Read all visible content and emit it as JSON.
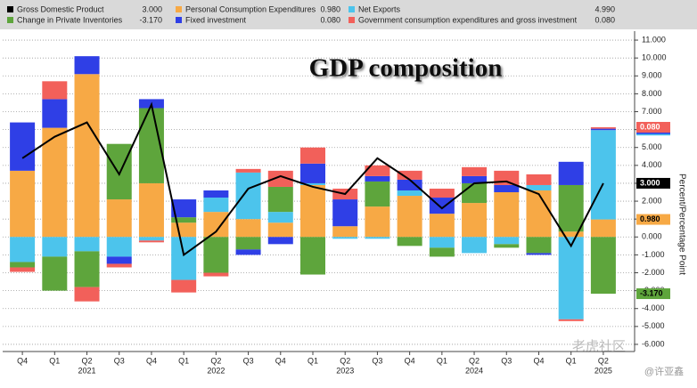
{
  "chart_data": {
    "type": "bar",
    "stacked": true,
    "title": "GDP composition",
    "y_label": "Percent/Percentage Point",
    "categories": [
      "Q4",
      "Q1",
      "Q2",
      "Q3",
      "Q4",
      "Q1",
      "Q2",
      "Q3",
      "Q4",
      "Q1",
      "Q2",
      "Q3",
      "Q4",
      "Q1",
      "Q2",
      "Q3",
      "Q4",
      "Q1",
      "Q2"
    ],
    "x_years": [
      null,
      null,
      "2021",
      null,
      null,
      null,
      "2022",
      null,
      null,
      null,
      "2023",
      null,
      null,
      null,
      "2024",
      null,
      null,
      null,
      "2025"
    ],
    "ylim": [
      -6.4,
      11.5
    ],
    "yticks": [
      {
        "value": 11,
        "label": "11.000"
      },
      {
        "value": 10,
        "label": "10.000"
      },
      {
        "value": 9,
        "label": "9.000"
      },
      {
        "value": 8,
        "label": "8.000"
      },
      {
        "value": 7,
        "label": "7.000"
      },
      {
        "value": 6,
        "label": "6.000"
      },
      {
        "value": 5,
        "label": "5.000"
      },
      {
        "value": 4,
        "label": "4.000"
      },
      {
        "value": 3,
        "label": "3.000"
      },
      {
        "value": 2,
        "label": "2.000"
      },
      {
        "value": 1,
        "label": "1.000"
      },
      {
        "value": 0,
        "label": "0.000"
      },
      {
        "value": -1,
        "label": "-1.000"
      },
      {
        "value": -2,
        "label": "-2.000"
      },
      {
        "value": -3,
        "label": "-3.000"
      },
      {
        "value": -4,
        "label": "-4.000"
      },
      {
        "value": -5,
        "label": "-5.000"
      },
      {
        "value": -6,
        "label": "-6.000"
      }
    ],
    "grid": true,
    "series": [
      {
        "name": "Gross Domestic Product",
        "type": "line",
        "color": "#000000",
        "values": [
          4.4,
          5.6,
          6.4,
          3.5,
          7.4,
          -1.0,
          0.3,
          2.7,
          3.4,
          2.8,
          2.4,
          4.4,
          3.2,
          1.6,
          3.0,
          3.1,
          2.4,
          -0.5,
          3.0
        ],
        "value_labels": [
          null,
          null,
          null,
          null,
          null,
          null,
          null,
          null,
          null,
          null,
          null,
          null,
          null,
          null,
          null,
          null,
          null,
          null,
          "3.000"
        ]
      },
      {
        "name": "Personal Consumption Expenditures",
        "type": "bar",
        "color": "#f7a945",
        "values": [
          3.7,
          6.1,
          9.1,
          2.1,
          3.0,
          0.8,
          1.4,
          1.0,
          0.8,
          2.9,
          0.6,
          1.7,
          2.3,
          1.3,
          1.9,
          2.5,
          2.6,
          0.3,
          0.98
        ],
        "value_labels": [
          null,
          null,
          null,
          null,
          null,
          null,
          null,
          null,
          null,
          null,
          null,
          null,
          null,
          null,
          null,
          null,
          null,
          null,
          "0.980"
        ]
      },
      {
        "name": "Net Exports",
        "type": "bar",
        "color": "#4cc4ec",
        "values": [
          -1.4,
          -1.1,
          -0.8,
          -1.1,
          -0.2,
          -2.4,
          0.8,
          2.6,
          0.6,
          0.1,
          -0.1,
          -0.1,
          0.3,
          -0.6,
          -0.9,
          -0.4,
          0.3,
          -4.6,
          4.99
        ],
        "value_labels": [
          null,
          null,
          null,
          null,
          null,
          null,
          null,
          null,
          null,
          null,
          null,
          null,
          null,
          null,
          null,
          null,
          null,
          null,
          "4.990"
        ]
      },
      {
        "name": "Change in Private Inventories",
        "type": "bar",
        "color": "#5ea53c",
        "values": [
          -0.3,
          -1.9,
          -2.0,
          3.1,
          4.2,
          0.3,
          -2.0,
          -0.7,
          1.4,
          -2.1,
          0.0,
          1.4,
          -0.5,
          -0.5,
          1.1,
          -0.2,
          -0.9,
          2.6,
          -3.17
        ],
        "value_labels": [
          null,
          null,
          null,
          null,
          null,
          null,
          null,
          null,
          null,
          null,
          null,
          null,
          null,
          null,
          null,
          null,
          null,
          null,
          "-3.170"
        ]
      },
      {
        "name": "Fixed investment",
        "type": "bar",
        "color": "#2f3fe6",
        "values": [
          2.7,
          1.6,
          1.0,
          -0.4,
          0.5,
          1.0,
          0.4,
          -0.3,
          -0.4,
          1.1,
          1.5,
          0.3,
          0.6,
          0.9,
          0.4,
          0.4,
          -0.1,
          1.3,
          0.08
        ],
        "value_labels": [
          null,
          null,
          null,
          null,
          null,
          null,
          null,
          null,
          null,
          null,
          null,
          null,
          null,
          null,
          null,
          null,
          null,
          null,
          "0.080"
        ]
      },
      {
        "name": "Government consumption expenditures and gross investment",
        "type": "bar",
        "color": "#f2605a",
        "values": [
          -0.25,
          1.0,
          -0.8,
          -0.2,
          -0.1,
          -0.7,
          -0.2,
          0.2,
          0.9,
          0.9,
          0.6,
          0.6,
          0.5,
          0.5,
          0.5,
          0.8,
          0.6,
          -0.1,
          0.08
        ],
        "value_labels": [
          null,
          null,
          null,
          null,
          null,
          null,
          null,
          null,
          null,
          null,
          null,
          null,
          null,
          null,
          null,
          null,
          null,
          null,
          "0.080"
        ]
      }
    ],
    "watermarks": [
      "老虎社区",
      "@许亚鑫"
    ]
  }
}
